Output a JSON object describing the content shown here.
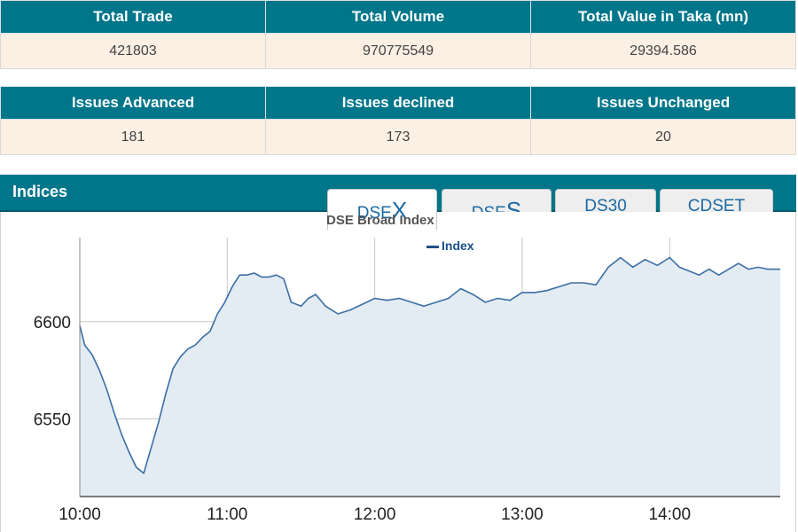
{
  "market_summary": {
    "headers": [
      "Total Trade",
      "Total Volume",
      "Total Value in Taka (mn)"
    ],
    "values": [
      "421803",
      "970775549",
      "29394.586"
    ]
  },
  "issues_summary": {
    "headers": [
      "Issues Advanced",
      "Issues declined",
      "Issues Unchanged"
    ],
    "values": [
      "181",
      "173",
      "20"
    ]
  },
  "indices": {
    "title": "Indices",
    "tabs": [
      {
        "prefix": "DSE",
        "suffix": "X",
        "active": true
      },
      {
        "prefix": "DSE",
        "suffix": "S",
        "active": false
      },
      {
        "label": "DS30",
        "active": false
      },
      {
        "label": "CDSET",
        "active": false
      }
    ]
  },
  "colors": {
    "header_teal": "#00768a",
    "row_bg": "#fcefe4",
    "line": "#3a6ea5",
    "area_fill": "#e3ebf3"
  },
  "chart_data": {
    "type": "area",
    "title": "DSE Broad Index",
    "legend": "Index",
    "xlabel": "",
    "ylabel": "",
    "x_ticks": [
      "10:00",
      "11:00",
      "12:00",
      "13:00",
      "14:00"
    ],
    "y_ticks": [
      6550,
      6600
    ],
    "xlim": [
      "10:00",
      "14:45"
    ],
    "ylim": [
      6510,
      6646
    ],
    "grid": true,
    "series": [
      {
        "x": [
          "10:00",
          "10:02",
          "10:05",
          "10:08",
          "10:11",
          "10:14",
          "10:17",
          "10:20",
          "10:23",
          "10:26",
          "10:29",
          "10:32",
          "10:35",
          "10:38",
          "10:41",
          "10:44",
          "10:47",
          "10:50",
          "10:53",
          "10:56",
          "10:59",
          "11:02",
          "11:05",
          "11:08",
          "11:11",
          "11:14",
          "11:17",
          "11:20",
          "11:23",
          "11:26",
          "11:30",
          "11:33",
          "11:36",
          "11:40",
          "11:45",
          "11:50",
          "11:55",
          "12:00",
          "12:05",
          "12:10",
          "12:15",
          "12:20",
          "12:25",
          "12:30",
          "12:35",
          "12:40",
          "12:45",
          "12:50",
          "12:55",
          "13:00",
          "13:05",
          "13:10",
          "13:15",
          "13:20",
          "13:25",
          "13:30",
          "13:35",
          "13:40",
          "13:45",
          "13:50",
          "13:55",
          "14:00",
          "14:04",
          "14:08",
          "14:12",
          "14:16",
          "14:20",
          "14:24",
          "14:28",
          "14:32",
          "14:36",
          "14:40",
          "14:45"
        ],
        "values": [
          6598,
          6588,
          6583,
          6575,
          6565,
          6553,
          6542,
          6533,
          6525,
          6522,
          6535,
          6548,
          6563,
          6576,
          6582,
          6586,
          6588,
          6592,
          6595,
          6604,
          6610,
          6618,
          6624,
          6624,
          6625,
          6623,
          6623,
          6624,
          6622,
          6610,
          6608,
          6612,
          6614,
          6608,
          6604,
          6606,
          6609,
          6612,
          6611,
          6612,
          6610,
          6608,
          6610,
          6612,
          6617,
          6614,
          6610,
          6612,
          6611,
          6615,
          6615,
          6616,
          6618,
          6620,
          6620,
          6619,
          6628,
          6633,
          6628,
          6632,
          6629,
          6633,
          6628,
          6626,
          6624,
          6627,
          6624,
          6627,
          6630,
          6627,
          6628,
          6627,
          6627
        ]
      }
    ]
  }
}
